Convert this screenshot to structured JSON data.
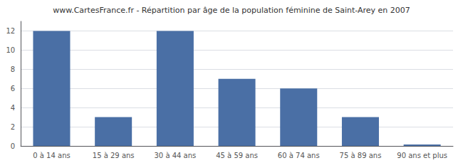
{
  "chart_data": {
    "type": "bar",
    "title": "www.CartesFrance.fr - Répartition par âge de la population féminine de Saint-Arey en 2007",
    "categories": [
      "0 à 14 ans",
      "15 à 29 ans",
      "30 à 44 ans",
      "45 à 59 ans",
      "60 à 74 ans",
      "75 à 89 ans",
      "90 ans et plus"
    ],
    "values": [
      12,
      3,
      12,
      7,
      6,
      3,
      0.15
    ],
    "color": "#4a6fa5",
    "ylim": [
      0,
      13
    ],
    "yticks": [
      0,
      2,
      4,
      6,
      8,
      10,
      12
    ],
    "grid": true
  }
}
